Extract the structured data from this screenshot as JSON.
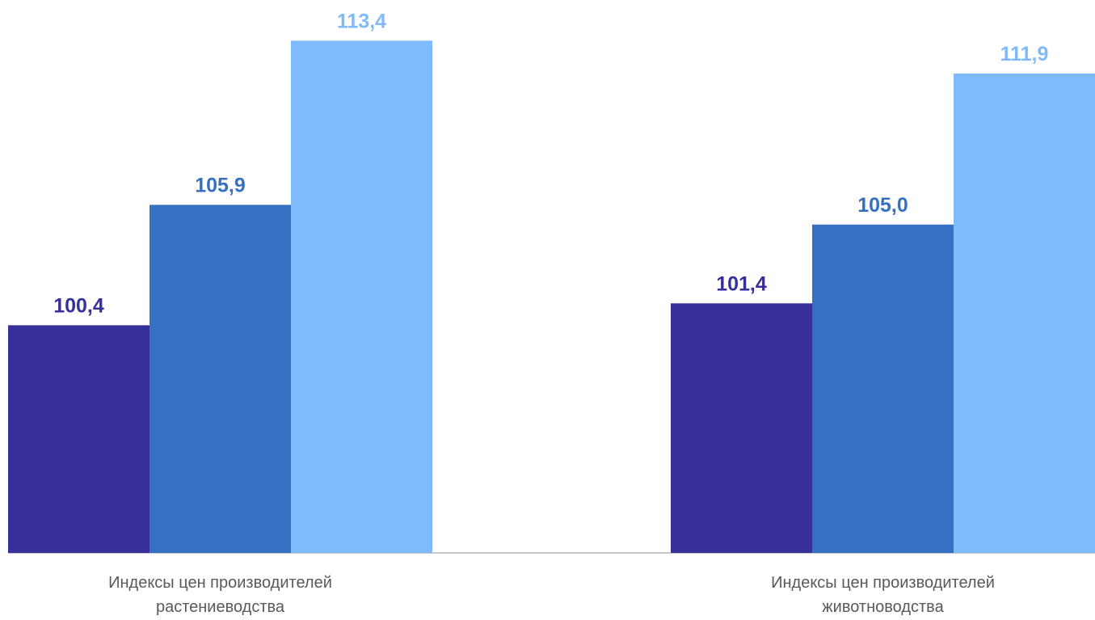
{
  "chart_data": {
    "type": "bar",
    "categories": [
      "Индексы цен производителей растениеводства",
      "Индексы цен производителей животноводства"
    ],
    "series": [
      {
        "color": "#38309a",
        "values": [
          100.4,
          101.4
        ],
        "value_labels": [
          "100,4",
          "101,4"
        ]
      },
      {
        "color": "#3570c2",
        "values": [
          105.9,
          105.0
        ],
        "value_labels": [
          "105,9",
          "105,0"
        ]
      },
      {
        "color": "#7fbafc",
        "values": [
          113.4,
          111.9
        ],
        "value_labels": [
          "113,4",
          "111,9"
        ]
      }
    ],
    "ylim": [
      90,
      115
    ]
  }
}
